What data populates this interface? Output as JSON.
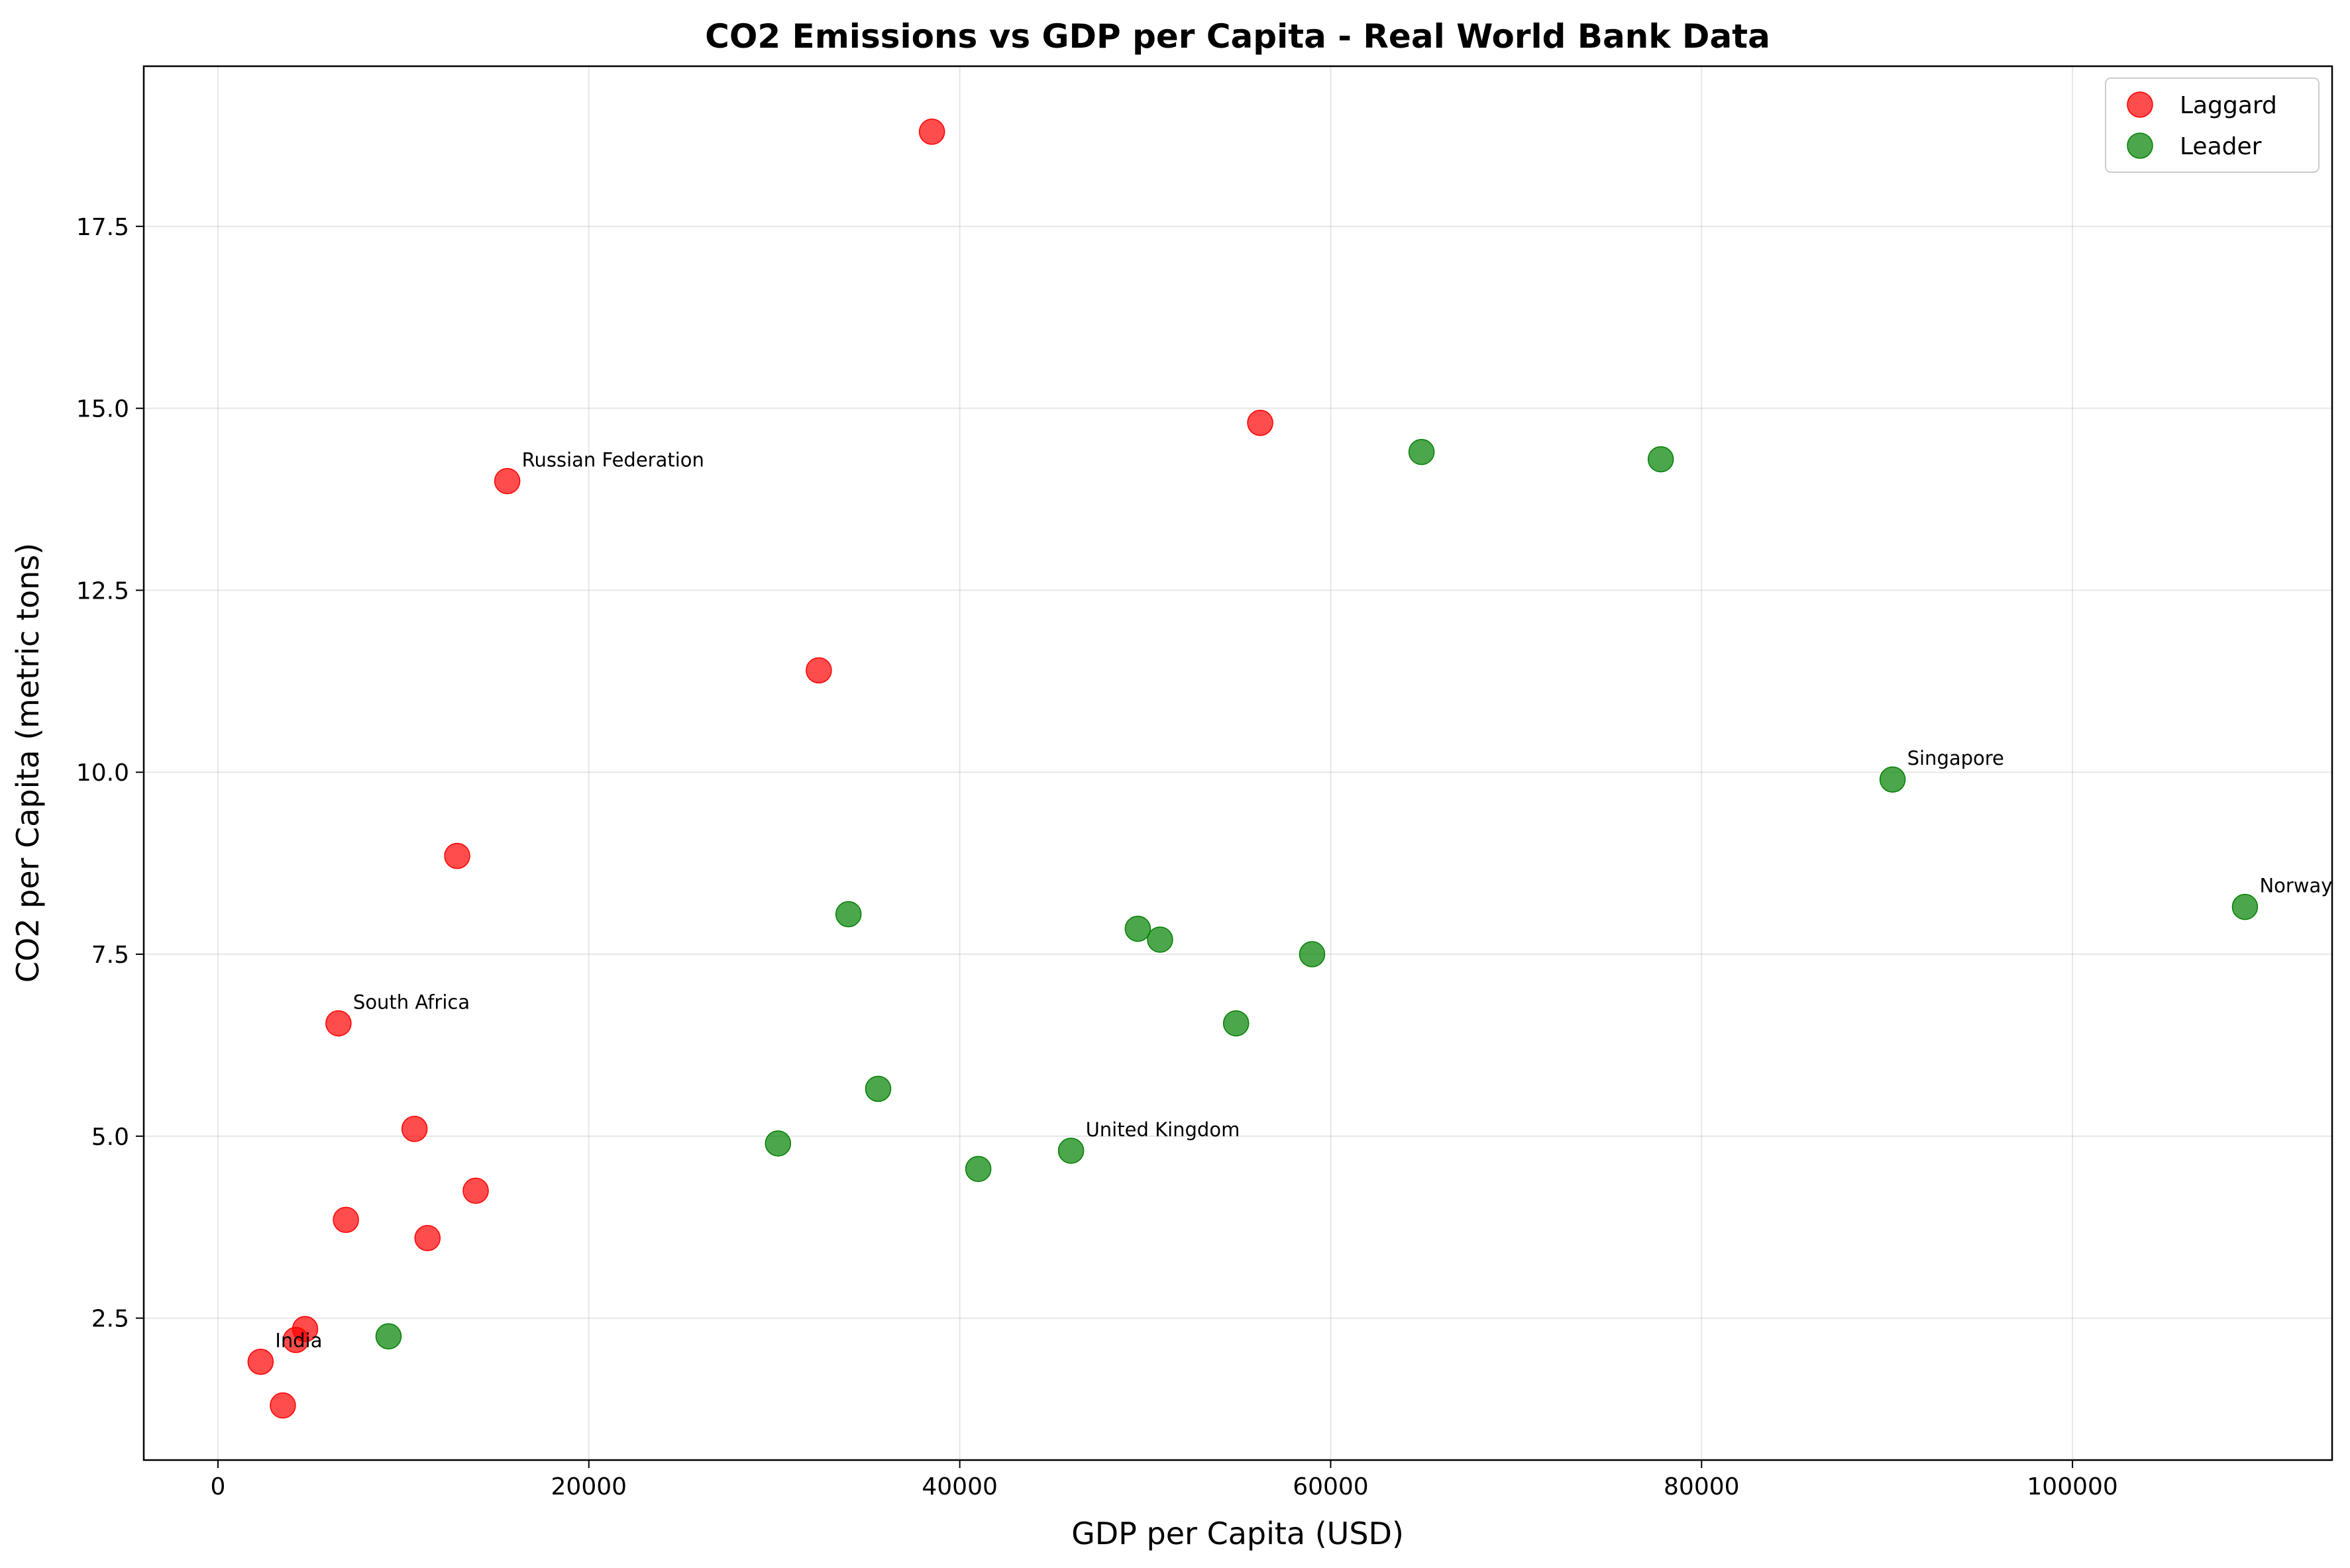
{
  "chart_data": {
    "type": "scatter",
    "title": "CO2 Emissions vs GDP per Capita - Real World Bank Data",
    "xlabel": "GDP per Capita (USD)",
    "ylabel": "CO2 per Capita (metric tons)",
    "xlim": [
      -4000,
      114000
    ],
    "ylim": [
      0.55,
      19.7
    ],
    "xticks": [
      0,
      20000,
      40000,
      60000,
      80000,
      100000
    ],
    "xtick_labels": [
      "0",
      "20000",
      "40000",
      "60000",
      "80000",
      "100000"
    ],
    "yticks": [
      2.5,
      5.0,
      7.5,
      10.0,
      12.5,
      15.0,
      17.5
    ],
    "ytick_labels": [
      "2.5",
      "5.0",
      "7.5",
      "10.0",
      "12.5",
      "15.0",
      "17.5"
    ],
    "grid": true,
    "legend_position": "upper-right",
    "series": [
      {
        "name": "Laggard",
        "color": "#ff0000",
        "points": [
          {
            "x": 38500,
            "y": 18.8
          },
          {
            "x": 56200,
            "y": 14.8
          },
          {
            "x": 15600,
            "y": 14.0,
            "label": "Russian Federation"
          },
          {
            "x": 32400,
            "y": 11.4
          },
          {
            "x": 12900,
            "y": 8.85
          },
          {
            "x": 6500,
            "y": 6.55,
            "label": "South Africa"
          },
          {
            "x": 10600,
            "y": 5.1
          },
          {
            "x": 13900,
            "y": 4.25
          },
          {
            "x": 6900,
            "y": 3.85
          },
          {
            "x": 11300,
            "y": 3.6
          },
          {
            "x": 4700,
            "y": 2.35
          },
          {
            "x": 4200,
            "y": 2.2
          },
          {
            "x": 2300,
            "y": 1.9,
            "label": "India"
          },
          {
            "x": 3500,
            "y": 1.3
          }
        ]
      },
      {
        "name": "Leader",
        "color": "#008000",
        "points": [
          {
            "x": 64900,
            "y": 14.4
          },
          {
            "x": 77800,
            "y": 14.3
          },
          {
            "x": 90300,
            "y": 9.9,
            "label": "Singapore"
          },
          {
            "x": 109300,
            "y": 8.15,
            "label": "Norway"
          },
          {
            "x": 34000,
            "y": 8.05
          },
          {
            "x": 49600,
            "y": 7.85
          },
          {
            "x": 50800,
            "y": 7.7
          },
          {
            "x": 59000,
            "y": 7.5
          },
          {
            "x": 54900,
            "y": 6.55
          },
          {
            "x": 35600,
            "y": 5.65
          },
          {
            "x": 30200,
            "y": 4.9
          },
          {
            "x": 46000,
            "y": 4.8,
            "label": "United Kingdom"
          },
          {
            "x": 41000,
            "y": 4.55
          },
          {
            "x": 9200,
            "y": 2.25
          }
        ]
      }
    ]
  }
}
